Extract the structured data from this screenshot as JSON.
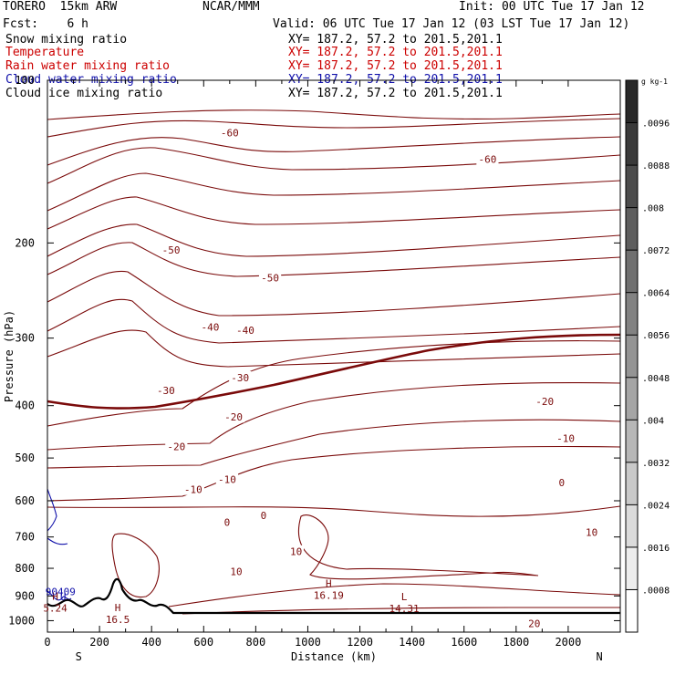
{
  "header": {
    "model": "TORERO  15km ARW",
    "center": "NCAR/MMM",
    "init": "Init: 00 UTC Tue 17 Jan 12",
    "fcst": "Fcst:    6 h",
    "valid": "Valid: 06 UTC Tue 17 Jan 12 (03 LST Tue 17 Jan 12)"
  },
  "legend": [
    {
      "name": "Snow mixing ratio",
      "xy": "XY= 187.2, 57.2 to 201.5,201.1",
      "color": "#000000"
    },
    {
      "name": "Temperature",
      "xy": "XY= 187.2, 57.2 to 201.5,201.1",
      "color": "#cc0000"
    },
    {
      "name": "Rain water mixing ratio",
      "xy": "XY= 187.2, 57.2 to 201.5,201.1",
      "color": "#cc0000"
    },
    {
      "name": "Cloud water mixing ratio",
      "xy": "XY= 187.2, 57.2 to 201.5,201.1",
      "color": "#1010aa"
    },
    {
      "name": "Cloud ice mixing ratio",
      "xy": "XY= 187.2, 57.2 to 201.5,201.1",
      "color": "#000000"
    }
  ],
  "chart_data": {
    "type": "contour cross-section",
    "xlabel": "Distance (km)",
    "ylabel": "Pressure (hPa)",
    "xlim": [
      0,
      2200
    ],
    "ylim": [
      1050,
      100
    ],
    "x_ticks": [
      "0",
      "200",
      "400",
      "600",
      "800",
      "1000",
      "1200",
      "1400",
      "1600",
      "1800",
      "2000"
    ],
    "y_ticks": [
      "100",
      "200",
      "300",
      "400",
      "500",
      "600",
      "700",
      "800",
      "900",
      "1000"
    ],
    "x_end_labels": {
      "left": "S",
      "right": "N"
    },
    "temperature_contour_labels": [
      {
        "text": "-60",
        "x": 700,
        "p": 125
      },
      {
        "text": "-60",
        "x": 1690,
        "p": 140
      },
      {
        "text": "-50",
        "x": 475,
        "p": 206
      },
      {
        "text": "-50",
        "x": 855,
        "p": 232
      },
      {
        "text": "-40",
        "x": 625,
        "p": 286
      },
      {
        "text": "-40",
        "x": 760,
        "p": 290
      },
      {
        "text": "-30",
        "x": 455,
        "p": 375
      },
      {
        "text": "-30",
        "x": 740,
        "p": 355
      },
      {
        "text": "-20",
        "x": 715,
        "p": 420
      },
      {
        "text": "-20",
        "x": 495,
        "p": 476
      },
      {
        "text": "-20",
        "x": 1910,
        "p": 393
      },
      {
        "text": "-10",
        "x": 1990,
        "p": 460
      },
      {
        "text": "-10",
        "x": 690,
        "p": 548
      },
      {
        "text": "-10",
        "x": 560,
        "p": 572
      },
      {
        "text": "0",
        "x": 1975,
        "p": 555
      },
      {
        "text": "0",
        "x": 830,
        "p": 638
      },
      {
        "text": "0",
        "x": 690,
        "p": 657
      },
      {
        "text": "10",
        "x": 2090,
        "p": 686
      },
      {
        "text": "10",
        "x": 955,
        "p": 745
      },
      {
        "text": "10",
        "x": 725,
        "p": 811
      },
      {
        "text": "20",
        "x": 1870,
        "p": 1012
      }
    ],
    "highs_lows": [
      {
        "type": "H",
        "value": "16.19",
        "x": 1080,
        "p": 894
      },
      {
        "type": "L",
        "value": "14.31",
        "x": 1370,
        "p": 946
      },
      {
        "type": "H",
        "value": "16.5",
        "x": 270,
        "p": 990
      },
      {
        "type": "H",
        "value": "5.24",
        "x": 30,
        "p": 944
      }
    ],
    "cloud_water_labels": [
      {
        "text": "90409",
        "x": 50,
        "p": 884
      },
      {
        "text": "U",
        "x": 60,
        "p": 902
      }
    ],
    "colorbar": {
      "unit": "g kg-1",
      "ticks": [
        ".0008",
        ".0016",
        ".0024",
        ".0032",
        ".004",
        ".0048",
        ".0056",
        ".0064",
        ".0072",
        ".008",
        ".0088",
        ".0096"
      ]
    }
  }
}
